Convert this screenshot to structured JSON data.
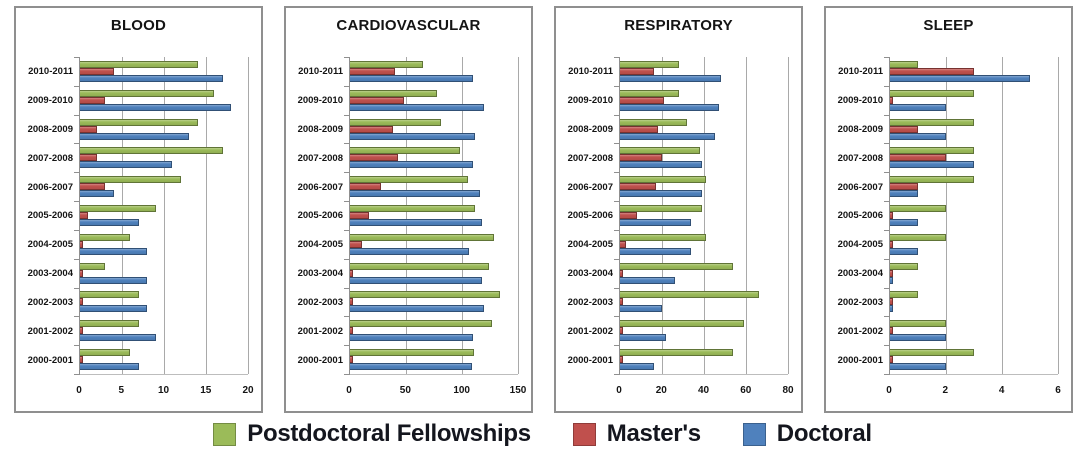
{
  "colors": {
    "postdoctoral_green": "#9BBB59",
    "masters_red": "#C0504D",
    "doctoral_blue": "#4F81BD",
    "gridline": "#A9A9A9",
    "panel_border": "#8F8F8F",
    "text": "#141414"
  },
  "legend": {
    "items": [
      {
        "label": "Postdoctoral Fellowships",
        "color": "#9BBB59"
      },
      {
        "label": "Master's",
        "color": "#C0504D"
      },
      {
        "label": "Doctoral",
        "color": "#4F81BD"
      }
    ]
  },
  "chart_data": [
    {
      "type": "bar",
      "orientation": "horizontal",
      "title": "BLOOD",
      "xlim": [
        0,
        20
      ],
      "xticks": [
        0,
        5,
        10,
        15,
        20
      ],
      "grid": true,
      "categories": [
        "2010-2011",
        "2009-2010",
        "2008-2009",
        "2007-2008",
        "2006-2007",
        "2005-2006",
        "2004-2005",
        "2003-2004",
        "2002-2003",
        "2001-2002",
        "2000-2001"
      ],
      "series": [
        {
          "name": "Postdoctoral Fellowships",
          "color": "#9BBB59",
          "values": [
            14,
            16,
            14,
            17,
            12,
            9,
            6,
            3,
            7,
            7,
            6
          ]
        },
        {
          "name": "Master's",
          "color": "#C0504D",
          "values": [
            4,
            3,
            2,
            2,
            3,
            1,
            0,
            0,
            0,
            0,
            0
          ]
        },
        {
          "name": "Doctoral",
          "color": "#4F81BD",
          "values": [
            17,
            18,
            13,
            11,
            4,
            7,
            8,
            8,
            8,
            9,
            7
          ]
        }
      ]
    },
    {
      "type": "bar",
      "orientation": "horizontal",
      "title": "CARDIOVASCULAR",
      "xlim": [
        0,
        150
      ],
      "xticks": [
        0,
        50,
        100,
        150
      ],
      "grid": true,
      "categories": [
        "2010-2011",
        "2009-2010",
        "2008-2009",
        "2007-2008",
        "2006-2007",
        "2005-2006",
        "2004-2005",
        "2003-2004",
        "2002-2003",
        "2001-2002",
        "2000-2001"
      ],
      "series": [
        {
          "name": "Postdoctoral Fellowships",
          "color": "#9BBB59",
          "values": [
            65,
            78,
            81,
            98,
            105,
            112,
            129,
            124,
            134,
            127,
            111
          ]
        },
        {
          "name": "Master's",
          "color": "#C0504D",
          "values": [
            40,
            48,
            38,
            43,
            28,
            17,
            11,
            0,
            0,
            0,
            0
          ]
        },
        {
          "name": "Doctoral",
          "color": "#4F81BD",
          "values": [
            110,
            120,
            112,
            110,
            116,
            118,
            106,
            118,
            120,
            110,
            109
          ]
        }
      ]
    },
    {
      "type": "bar",
      "orientation": "horizontal",
      "title": "RESPIRATORY",
      "xlim": [
        0,
        80
      ],
      "xticks": [
        0,
        20,
        40,
        60,
        80
      ],
      "grid": true,
      "categories": [
        "2010-2011",
        "2009-2010",
        "2008-2009",
        "2007-2008",
        "2006-2007",
        "2005-2006",
        "2004-2005",
        "2003-2004",
        "2002-2003",
        "2001-2002",
        "2000-2001"
      ],
      "series": [
        {
          "name": "Postdoctoral Fellowships",
          "color": "#9BBB59",
          "values": [
            28,
            28,
            32,
            38,
            41,
            39,
            41,
            54,
            66,
            59,
            54
          ]
        },
        {
          "name": "Master's",
          "color": "#C0504D",
          "values": [
            16,
            21,
            18,
            20,
            17,
            8,
            3,
            0,
            0,
            0,
            0
          ]
        },
        {
          "name": "Doctoral",
          "color": "#4F81BD",
          "values": [
            48,
            47,
            45,
            39,
            39,
            34,
            34,
            26,
            20,
            22,
            16
          ]
        }
      ]
    },
    {
      "type": "bar",
      "orientation": "horizontal",
      "title": "SLEEP",
      "xlim": [
        0,
        6
      ],
      "xticks": [
        0,
        2,
        4,
        6
      ],
      "grid": true,
      "categories": [
        "2010-2011",
        "2009-2010",
        "2008-2009",
        "2007-2008",
        "2006-2007",
        "2005-2006",
        "2004-2005",
        "2003-2004",
        "2002-2003",
        "2001-2002",
        "2000-2001"
      ],
      "series": [
        {
          "name": "Postdoctoral Fellowships",
          "color": "#9BBB59",
          "values": [
            1,
            3,
            3,
            3,
            3,
            2,
            2,
            1,
            1,
            2,
            3
          ]
        },
        {
          "name": "Master's",
          "color": "#C0504D",
          "values": [
            3,
            0,
            1,
            2,
            1,
            0,
            0,
            0,
            0,
            0,
            0
          ]
        },
        {
          "name": "Doctoral",
          "color": "#4F81BD",
          "values": [
            5,
            2,
            2,
            3,
            1,
            1,
            1,
            0,
            0,
            2,
            2
          ]
        }
      ]
    }
  ]
}
